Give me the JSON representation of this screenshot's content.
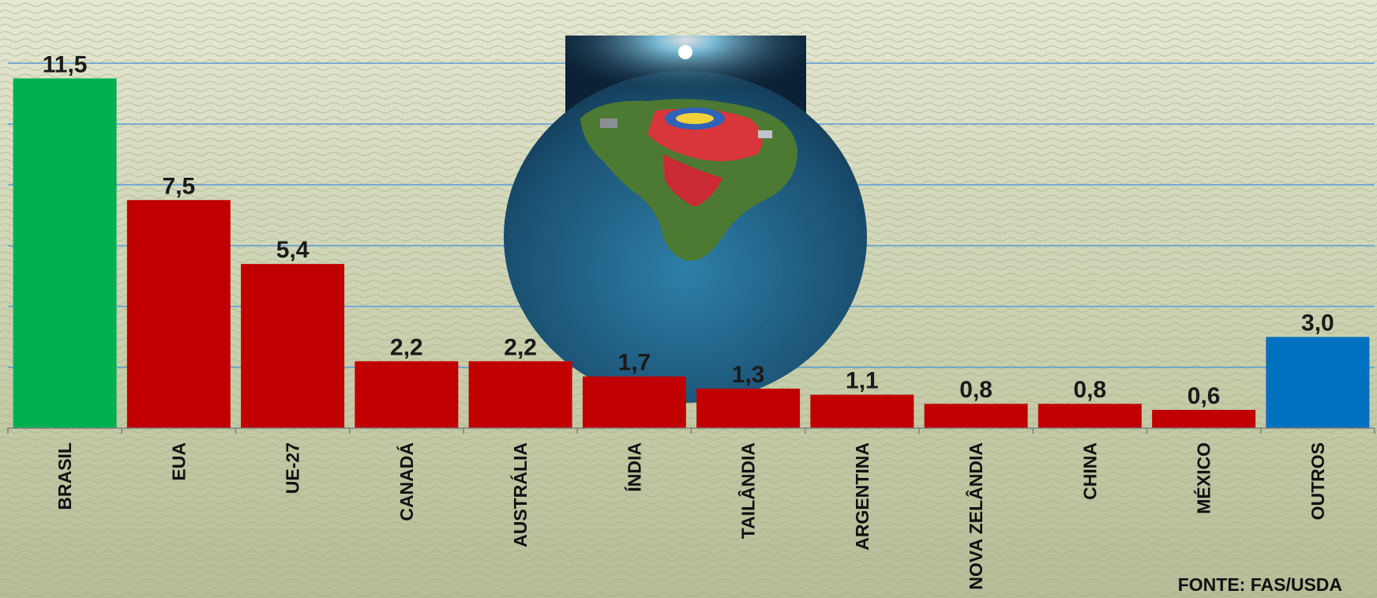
{
  "chart_data": {
    "type": "bar",
    "title": "",
    "xlabel": "",
    "ylabel": "",
    "categories": [
      "BRASIL",
      "EUA",
      "UE-27",
      "CANADÁ",
      "AUSTRÁLIA",
      "ÍNDIA",
      "TAILÂNDIA",
      "ARGENTINA",
      "NOVA ZELÂNDIA",
      "CHINA",
      "MÉXICO",
      "OUTROS"
    ],
    "values": [
      11.5,
      7.5,
      5.4,
      2.2,
      2.2,
      1.7,
      1.3,
      1.1,
      0.8,
      0.8,
      0.6,
      3.0
    ],
    "value_labels": [
      "11,5",
      "7,5",
      "5,4",
      "2,2",
      "2,2",
      "1,7",
      "1,3",
      "1,1",
      "0,8",
      "0,8",
      "0,6",
      "3,0"
    ],
    "bar_colors": [
      "#00b050",
      "#c00000",
      "#c00000",
      "#c00000",
      "#c00000",
      "#c00000",
      "#c00000",
      "#c00000",
      "#c00000",
      "#c00000",
      "#c00000",
      "#0070c0"
    ],
    "ylim": [
      0,
      12
    ],
    "gridlines": [
      2,
      4,
      6,
      8,
      10,
      12
    ],
    "gridline_color": "#5b9bd5",
    "grid": true,
    "legend": "none",
    "background": "sea-photo",
    "inset_image": "brazil-globe-illustration",
    "source": "FONTE: FAS/USDA"
  }
}
